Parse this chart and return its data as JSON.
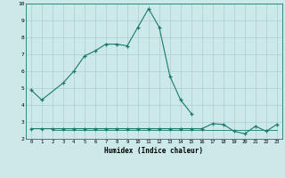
{
  "xlabel": "Humidex (Indice chaleur)",
  "x": [
    0,
    1,
    2,
    3,
    4,
    5,
    6,
    7,
    8,
    9,
    10,
    11,
    12,
    13,
    14,
    15,
    16,
    17,
    18,
    19,
    20,
    21,
    22,
    23
  ],
  "line1_y": [
    4.9,
    4.3,
    null,
    5.3,
    6.0,
    6.9,
    7.2,
    7.6,
    7.6,
    7.5,
    8.6,
    9.7,
    8.6,
    5.7,
    4.3,
    3.5,
    null,
    null,
    null,
    null,
    null,
    null,
    null,
    null
  ],
  "line2_y": [
    2.6,
    2.6,
    2.6,
    2.6,
    2.6,
    2.6,
    2.6,
    2.6,
    2.6,
    2.6,
    2.6,
    2.6,
    2.6,
    2.6,
    2.6,
    2.6,
    2.6,
    2.9,
    2.85,
    2.45,
    2.3,
    2.75,
    2.45,
    2.85
  ],
  "line3_y": [
    null,
    null,
    2.55,
    2.55,
    2.55,
    2.55,
    2.55,
    2.55,
    2.55,
    2.55,
    2.55,
    2.55,
    2.55,
    2.55,
    2.55,
    2.55,
    2.55,
    2.55,
    2.55,
    2.55,
    2.55,
    2.55,
    2.55,
    2.55
  ],
  "ylim": [
    2.0,
    10.0
  ],
  "xlim": [
    -0.5,
    23.5
  ],
  "yticks": [
    2,
    3,
    4,
    5,
    6,
    7,
    8,
    9,
    10
  ],
  "xticks": [
    0,
    1,
    2,
    3,
    4,
    5,
    6,
    7,
    8,
    9,
    10,
    11,
    12,
    13,
    14,
    15,
    16,
    17,
    18,
    19,
    20,
    21,
    22,
    23
  ],
  "line_color": "#1a7a6e",
  "bg_color": "#cce8e8",
  "grid_color": "#aacfcf"
}
